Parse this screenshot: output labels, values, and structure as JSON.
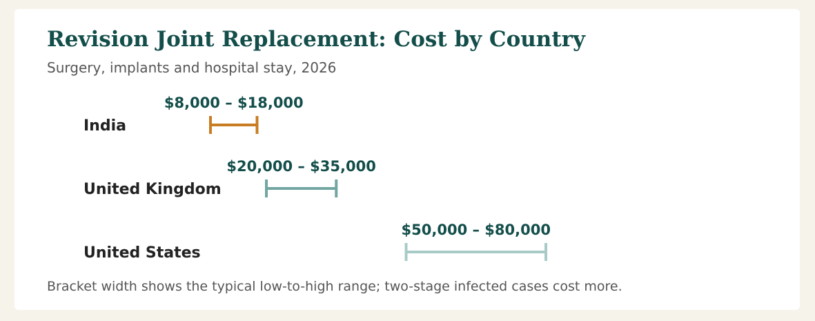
{
  "chart_data": {
    "type": "range-bracket",
    "title": "Revision Joint Replacement: Cost by Country",
    "subtitle": "Surgery, implants and hospital stay, 2026",
    "footnote": "Bracket width shows the typical low-to-high range; two-stage infected cases cost more.",
    "categories": [
      "India",
      "United Kingdom",
      "United States"
    ],
    "ranges": [
      {
        "country": "India",
        "low": 8000,
        "high": 18000,
        "label": "$8,000 – $18,000",
        "color": "#c97d22"
      },
      {
        "country": "United Kingdom",
        "low": 20000,
        "high": 35000,
        "label": "$20,000 – $35,000",
        "color": "#72a6a1"
      },
      {
        "country": "United States",
        "low": 50000,
        "high": 80000,
        "label": "$50,000 – $80,000",
        "color": "#a9cbc7"
      }
    ],
    "grid": false,
    "legend": "none"
  },
  "colors": {
    "title": "#134e4a",
    "range_label": "#134e4a",
    "background": "#f6f3eb",
    "card": "#ffffff"
  }
}
